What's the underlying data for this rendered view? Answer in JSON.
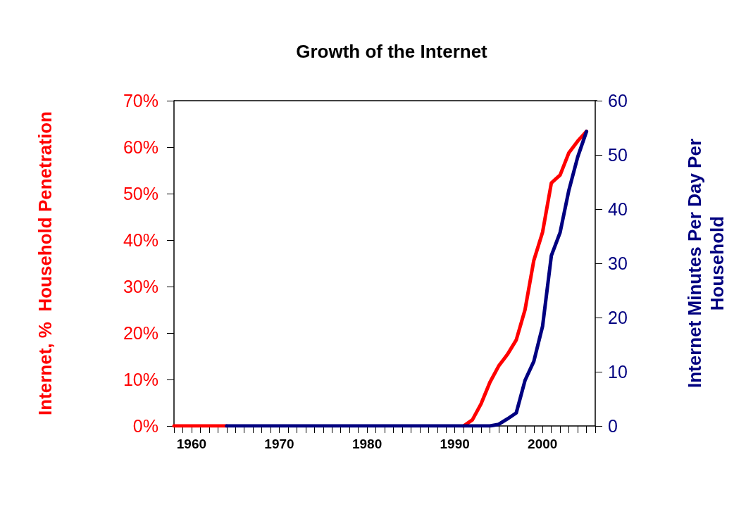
{
  "chart_data": {
    "type": "line",
    "title": "Growth of the Internet",
    "ylabel": "Internet, %  Household Penetration",
    "y2label": "Internet Minutes Per Day Per Household",
    "xlim": [
      1958,
      2006
    ],
    "xticks": [
      {
        "value": 1958,
        "label": null
      },
      {
        "value": 1959,
        "label": null
      },
      {
        "value": 1960,
        "label": "1960"
      },
      {
        "value": 1961,
        "label": null
      },
      {
        "value": 1962,
        "label": null
      },
      {
        "value": 1963,
        "label": null
      },
      {
        "value": 1964,
        "label": null
      },
      {
        "value": 1965,
        "label": null
      },
      {
        "value": 1966,
        "label": null
      },
      {
        "value": 1967,
        "label": null
      },
      {
        "value": 1968,
        "label": null
      },
      {
        "value": 1969,
        "label": null
      },
      {
        "value": 1970,
        "label": "1970"
      },
      {
        "value": 1971,
        "label": null
      },
      {
        "value": 1972,
        "label": null
      },
      {
        "value": 1973,
        "label": null
      },
      {
        "value": 1974,
        "label": null
      },
      {
        "value": 1975,
        "label": null
      },
      {
        "value": 1976,
        "label": null
      },
      {
        "value": 1977,
        "label": null
      },
      {
        "value": 1978,
        "label": null
      },
      {
        "value": 1979,
        "label": null
      },
      {
        "value": 1980,
        "label": "1980"
      },
      {
        "value": 1981,
        "label": null
      },
      {
        "value": 1982,
        "label": null
      },
      {
        "value": 1983,
        "label": null
      },
      {
        "value": 1984,
        "label": null
      },
      {
        "value": 1985,
        "label": null
      },
      {
        "value": 1986,
        "label": null
      },
      {
        "value": 1987,
        "label": null
      },
      {
        "value": 1988,
        "label": null
      },
      {
        "value": 1989,
        "label": null
      },
      {
        "value": 1990,
        "label": "1990"
      },
      {
        "value": 1991,
        "label": null
      },
      {
        "value": 1992,
        "label": null
      },
      {
        "value": 1993,
        "label": null
      },
      {
        "value": 1994,
        "label": null
      },
      {
        "value": 1995,
        "label": null
      },
      {
        "value": 1996,
        "label": null
      },
      {
        "value": 1997,
        "label": null
      },
      {
        "value": 1998,
        "label": null
      },
      {
        "value": 1999,
        "label": null
      },
      {
        "value": 2000,
        "label": "2000"
      },
      {
        "value": 2001,
        "label": null
      },
      {
        "value": 2002,
        "label": null
      },
      {
        "value": 2003,
        "label": null
      },
      {
        "value": 2004,
        "label": null
      },
      {
        "value": 2005,
        "label": null
      },
      {
        "value": 2006,
        "label": null
      }
    ],
    "ylim": [
      0,
      70
    ],
    "yticks": [
      {
        "value": 0,
        "label": "0%"
      },
      {
        "value": 10,
        "label": "10%"
      },
      {
        "value": 20,
        "label": "20%"
      },
      {
        "value": 30,
        "label": "30%"
      },
      {
        "value": 40,
        "label": "40%"
      },
      {
        "value": 50,
        "label": "50%"
      },
      {
        "value": 60,
        "label": "60%"
      },
      {
        "value": 70,
        "label": "70%"
      }
    ],
    "y2lim": [
      0,
      60
    ],
    "y2ticks": [
      0,
      10,
      20,
      30,
      40,
      50,
      60
    ],
    "grid": false,
    "marker": "none",
    "line_style": "solid",
    "series": [
      {
        "color": "#ff0000",
        "x": [
          1958,
          1959,
          1960,
          1961,
          1962,
          1963,
          1964,
          1965,
          1991,
          1992,
          1993,
          1994,
          1995,
          1996,
          1997,
          1998,
          1999,
          2000,
          2001,
          2002,
          2003,
          2004,
          2005
        ],
        "values": [
          0,
          0,
          0,
          0,
          0,
          0,
          0,
          null,
          0,
          1.3,
          4.8,
          9.4,
          12.9,
          15.4,
          18.5,
          25,
          35.6,
          41.7,
          52.3,
          54,
          58.8,
          61.3,
          63.4
        ]
      },
      {
        "color": "#000080",
        "axis": "y2",
        "x": [
          1964,
          1965,
          1966,
          1967,
          1968,
          1969,
          1970,
          1971,
          1972,
          1973,
          1974,
          1975,
          1976,
          1977,
          1978,
          1979,
          1980,
          1981,
          1982,
          1983,
          1984,
          1985,
          1986,
          1987,
          1988,
          1989,
          1990,
          1991,
          1992,
          1993,
          1994,
          1995,
          1996,
          1997,
          1998,
          1999,
          2000,
          2001,
          2002,
          2003,
          2004,
          2005
        ],
        "values": [
          0,
          0,
          0,
          0,
          0,
          0,
          0,
          0,
          0,
          0,
          0,
          0,
          0,
          0,
          0,
          0,
          0,
          0,
          0,
          0,
          0,
          0,
          0,
          0,
          0,
          0,
          0,
          0,
          0,
          0,
          0,
          0.3,
          1.3,
          2.4,
          8.4,
          11.9,
          18.4,
          31.4,
          35.7,
          43.5,
          49.6,
          54.3
        ]
      }
    ]
  }
}
